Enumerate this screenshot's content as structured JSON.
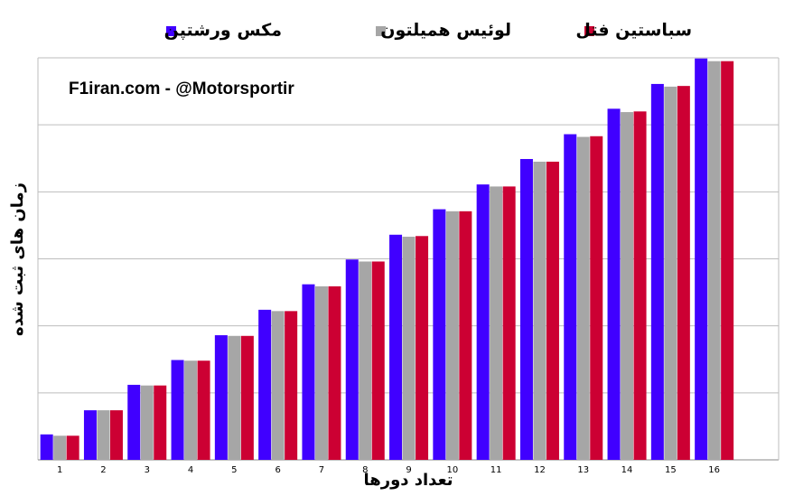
{
  "chart_data": {
    "type": "bar",
    "annotation": "F1iran.com  -  @Motorsportir",
    "x_label": "تعداد دورها",
    "y_label": "زمان های ثبت شده",
    "categories": [
      "1",
      "2",
      "3",
      "4",
      "5",
      "6",
      "7",
      "8",
      "9",
      "10",
      "11",
      "12",
      "13",
      "14",
      "15",
      "16"
    ],
    "series": [
      {
        "name": "مکس ورشتپن",
        "color": "#4000ff",
        "values": [
          0.38,
          0.74,
          1.12,
          1.49,
          1.86,
          2.24,
          2.62,
          2.99,
          3.36,
          3.74,
          4.11,
          4.49,
          4.86,
          5.24,
          5.61,
          5.99
        ]
      },
      {
        "name": "لوئیس همیلتون",
        "color": "#a6a6a6",
        "values": [
          0.36,
          0.74,
          1.11,
          1.48,
          1.85,
          2.22,
          2.59,
          2.96,
          3.33,
          3.71,
          4.08,
          4.45,
          4.82,
          5.19,
          5.57,
          5.95
        ]
      },
      {
        "name": "سباستین فتل",
        "color": "#cc0033",
        "values": [
          0.36,
          0.74,
          1.11,
          1.48,
          1.85,
          2.22,
          2.59,
          2.96,
          3.34,
          3.71,
          4.08,
          4.45,
          4.83,
          5.2,
          5.58,
          5.95
        ]
      }
    ],
    "ylim": [
      0,
      6
    ],
    "yticks": [
      0,
      1,
      2,
      3,
      4,
      5,
      6
    ],
    "grid": true
  }
}
